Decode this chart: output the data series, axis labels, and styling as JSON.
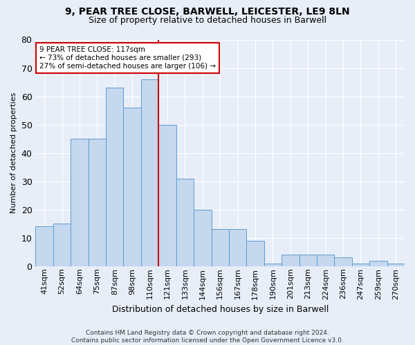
{
  "title": "9, PEAR TREE CLOSE, BARWELL, LEICESTER, LE9 8LN",
  "subtitle": "Size of property relative to detached houses in Barwell",
  "xlabel": "Distribution of detached houses by size in Barwell",
  "ylabel": "Number of detached properties",
  "categories": [
    "41sqm",
    "52sqm",
    "64sqm",
    "75sqm",
    "87sqm",
    "98sqm",
    "110sqm",
    "121sqm",
    "133sqm",
    "144sqm",
    "156sqm",
    "167sqm",
    "178sqm",
    "190sqm",
    "201sqm",
    "213sqm",
    "224sqm",
    "236sqm",
    "247sqm",
    "259sqm",
    "270sqm"
  ],
  "values": [
    14,
    15,
    45,
    45,
    63,
    56,
    66,
    50,
    31,
    20,
    13,
    13,
    9,
    1,
    4,
    4,
    4,
    3,
    1,
    2,
    1
  ],
  "bar_color": "#c5d8ee",
  "bar_edge_color": "#5b9bd5",
  "red_line_index": 6.5,
  "annotation_text": "9 PEAR TREE CLOSE: 117sqm\n← 73% of detached houses are smaller (293)\n27% of semi-detached houses are larger (106) →",
  "annotation_box_color": "#ffffff",
  "annotation_box_edge_color": "#cc0000",
  "red_line_color": "#cc0000",
  "background_color": "#e8eef8",
  "grid_color": "#ffffff",
  "title_fontsize": 10,
  "subtitle_fontsize": 9,
  "tick_fontsize": 8,
  "ylabel_fontsize": 8,
  "xlabel_fontsize": 9,
  "footer_text": "Contains HM Land Registry data © Crown copyright and database right 2024.\nContains public sector information licensed under the Open Government Licence v3.0.",
  "ylim": [
    0,
    80
  ],
  "yticks": [
    0,
    10,
    20,
    30,
    40,
    50,
    60,
    70,
    80
  ]
}
